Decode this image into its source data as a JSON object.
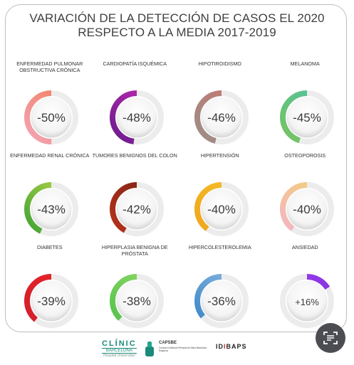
{
  "title": {
    "line1": "VARIACIÓN DE LA DETECCIÓN DE CASOS EL 2020",
    "line2": "RESPECTO A LA MEDIA 2017-2019"
  },
  "chart_data": {
    "type": "donut",
    "items": [
      {
        "label": "ENFERMEDAD PULMONAR OBSTRUCTIVA CRÓNICA",
        "value": -50,
        "display": "-50%",
        "colors": [
          "#f4a5b7",
          "#f07d5a"
        ]
      },
      {
        "label": "CARDIOPATÍA ISQUÉMICA",
        "value": -48,
        "display": "-48%",
        "colors": [
          "#6a1b8e",
          "#c02bb0"
        ]
      },
      {
        "label": "HIPOTIROIDISMO",
        "value": -46,
        "display": "-46%",
        "colors": [
          "#9a8f88",
          "#c8766f"
        ]
      },
      {
        "label": "MELANOMA",
        "value": -45,
        "display": "-45%",
        "colors": [
          "#79c35e",
          "#4cc3a6"
        ]
      },
      {
        "label": "ENFERMEDAD RENAL CRÓNICA",
        "value": -43,
        "display": "-43%",
        "colors": [
          "#3ea233",
          "#b6d44a"
        ]
      },
      {
        "label": "TUMORES BENIGNOS DEL COLON",
        "value": -42,
        "display": "-42%",
        "colors": [
          "#b8321b",
          "#7a2417"
        ]
      },
      {
        "label": "HIPERTENSIÓN",
        "value": -40,
        "display": "-40%",
        "colors": [
          "#f0a51c",
          "#f3c12a"
        ]
      },
      {
        "label": "OSTEOPOROSIS",
        "value": -40,
        "display": "-40%",
        "colors": [
          "#f2b4c8",
          "#f4d36d"
        ]
      },
      {
        "label": "DIABETES",
        "value": -39,
        "display": "-39%",
        "colors": [
          "#d21e2b",
          "#e8262a"
        ]
      },
      {
        "label": "HIPERPLASIA BENIGNA DE PRÓSTATA",
        "value": -38,
        "display": "-38%",
        "colors": [
          "#54c24c",
          "#8fd965"
        ]
      },
      {
        "label": "HIPERCOLESTEROLEMIA",
        "value": -36,
        "display": "-36%",
        "colors": [
          "#3a86c8",
          "#8cb8e0"
        ]
      },
      {
        "label": "ANSIEDAD",
        "value": 16,
        "display": "+16%",
        "colors": [
          "#7b2fd6",
          "#9b3df0"
        ]
      }
    ]
  },
  "footer": {
    "clinic": {
      "name": "CLÍNIC",
      "sub": "BARCELONA",
      "tag": "Hospital Universitari"
    },
    "capsbe": {
      "name": "CAPSBE",
      "desc": "Consorci d'Atenció Primària de Salut Barcelona Esquerra"
    },
    "idibaps": {
      "prefix": "ID",
      "mark": "I",
      "suffix": "BAPS"
    }
  },
  "scan_button": {
    "icon": "scan-text-icon"
  }
}
